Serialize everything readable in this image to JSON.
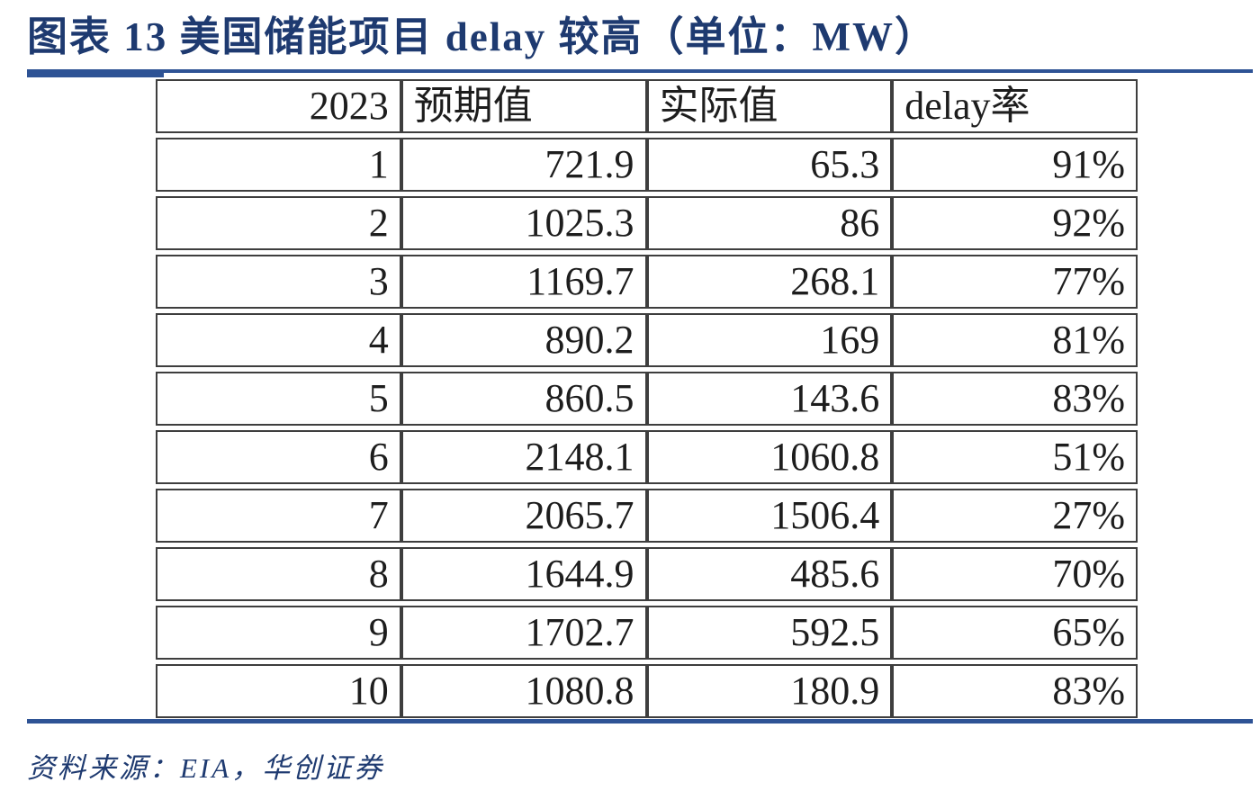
{
  "title": "图表 13  美国储能项目 delay 较高（单位：MW）",
  "source_note": "资料来源：EIA，华创证券",
  "colors": {
    "navy_text": "#1e3a70",
    "rule_blue": "#2e5395",
    "table_border": "#3e3e3e",
    "table_text": "#1d1d1d"
  },
  "chart_data": {
    "type": "table",
    "figure_label": "图表 13",
    "title": "美国储能项目 delay 较高",
    "unit": "MW",
    "columns": [
      "2023",
      "预期值",
      "实际值",
      "delay率"
    ],
    "rows": [
      [
        "1",
        "721.9",
        "65.3",
        "91%"
      ],
      [
        "2",
        "1025.3",
        "86",
        "92%"
      ],
      [
        "3",
        "1169.7",
        "268.1",
        "77%"
      ],
      [
        "4",
        "890.2",
        "169",
        "81%"
      ],
      [
        "5",
        "860.5",
        "143.6",
        "83%"
      ],
      [
        "6",
        "2148.1",
        "1060.8",
        "51%"
      ],
      [
        "7",
        "2065.7",
        "1506.4",
        "27%"
      ],
      [
        "8",
        "1644.9",
        "485.6",
        "70%"
      ],
      [
        "9",
        "1702.7",
        "592.5",
        "65%"
      ],
      [
        "10",
        "1080.8",
        "180.9",
        "83%"
      ]
    ],
    "source": "EIA，华创证券"
  }
}
